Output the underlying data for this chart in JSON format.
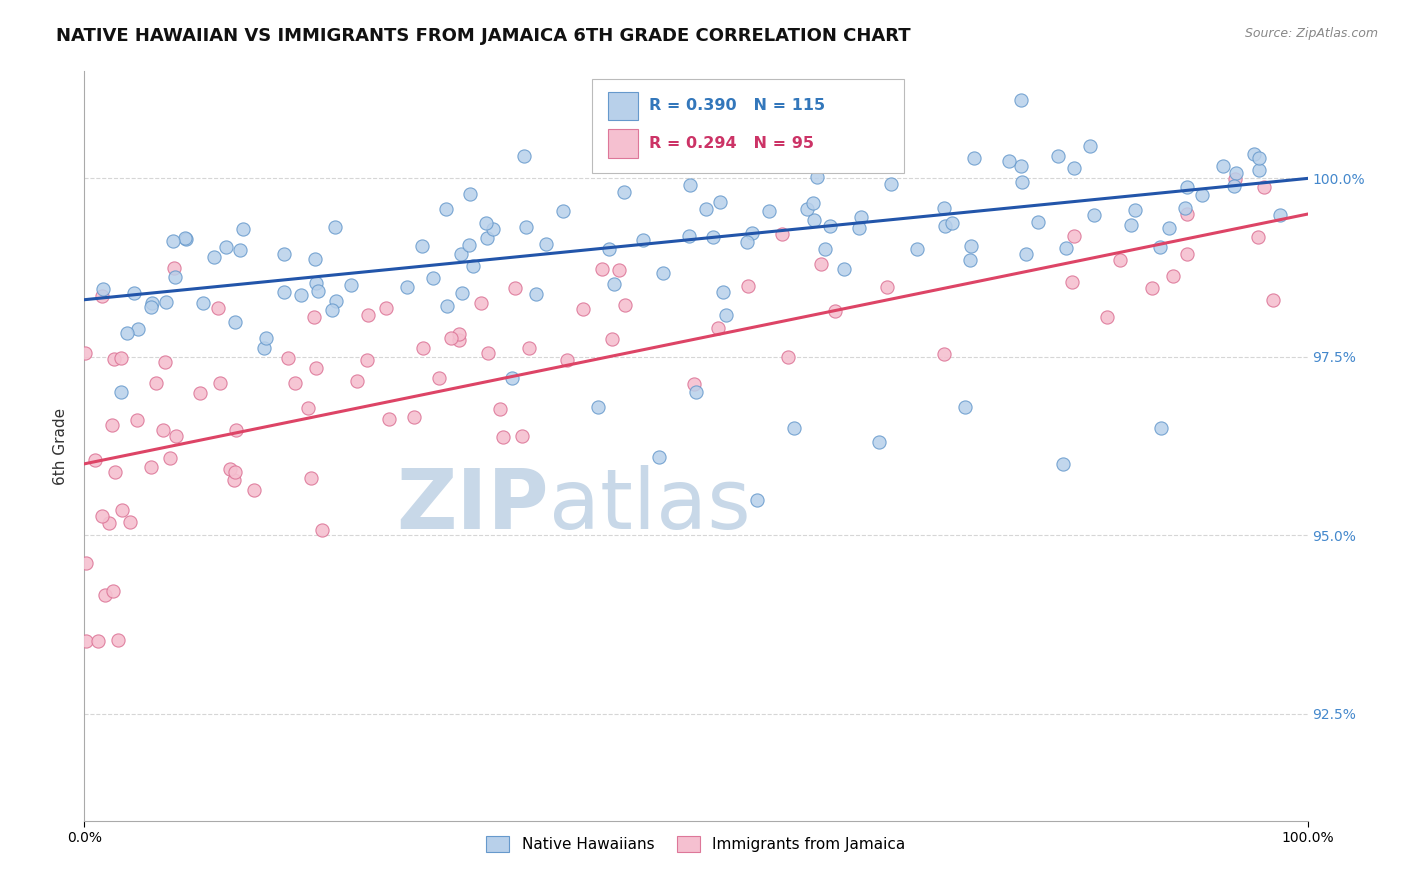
{
  "title": "NATIVE HAWAIIAN VS IMMIGRANTS FROM JAMAICA 6TH GRADE CORRELATION CHART",
  "source_text": "Source: ZipAtlas.com",
  "ylabel": "6th Grade",
  "xlim": [
    0.0,
    100.0
  ],
  "ylim": [
    91.0,
    101.5
  ],
  "yticks": [
    92.5,
    95.0,
    97.5,
    100.0
  ],
  "ytick_labels": [
    "92.5%",
    "95.0%",
    "97.5%",
    "100.0%"
  ],
  "xtick_labels": [
    "0.0%",
    "100.0%"
  ],
  "blue_legend_label": "Native Hawaiians",
  "pink_legend_label": "Immigrants from Jamaica",
  "blue_R": 0.39,
  "blue_N": 115,
  "pink_R": 0.294,
  "pink_N": 95,
  "blue_color": "#b8d0ea",
  "blue_edge_color": "#6699cc",
  "pink_color": "#f5c0d0",
  "pink_edge_color": "#dd7799",
  "blue_line_color": "#2255aa",
  "pink_line_color": "#dd4466",
  "watermark_zip_color": "#c8d8e8",
  "watermark_atlas_color": "#c8d8e8",
  "background_color": "#ffffff",
  "grid_color": "#cccccc",
  "title_fontsize": 13,
  "axis_label_fontsize": 11,
  "tick_fontsize": 10,
  "marker_size": 90,
  "blue_trend_y_start": 98.3,
  "blue_trend_y_end": 100.0,
  "pink_trend_y_start": 96.0,
  "pink_trend_y_end": 99.5
}
